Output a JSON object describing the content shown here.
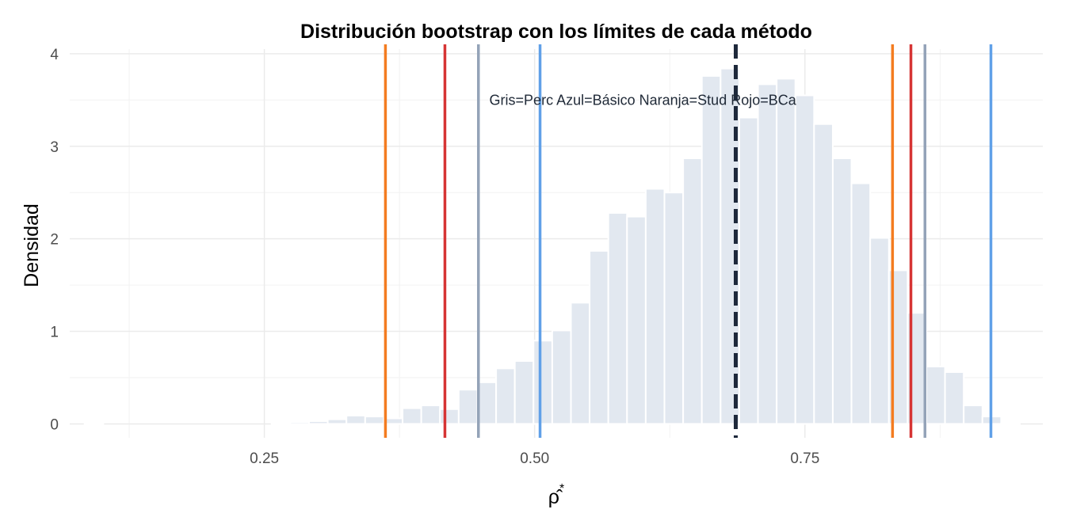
{
  "chart_data": {
    "type": "bar",
    "title": "Distribución bootstrap con los límites de cada método",
    "xlabel": "ρ̂*",
    "ylabel": "Densidad",
    "xlim": [
      0.07,
      0.97
    ],
    "ylim": [
      -0.15,
      4.05
    ],
    "x_ticks": [
      0.25,
      0.5,
      0.75
    ],
    "x_tick_labels": [
      "0.25",
      "0.50",
      "0.75"
    ],
    "y_ticks": [
      0,
      1,
      2,
      3,
      4
    ],
    "y_tick_labels": [
      "0",
      "1",
      "2",
      "3",
      "4"
    ],
    "grid": true,
    "bin_width": 0.0173,
    "bins": {
      "x": [
        0.0924,
        0.2654,
        0.2827,
        0.3,
        0.3173,
        0.3346,
        0.3519,
        0.3692,
        0.3865,
        0.4038,
        0.4211,
        0.4384,
        0.4557,
        0.473,
        0.4903,
        0.5076,
        0.5249,
        0.5422,
        0.5595,
        0.5768,
        0.5941,
        0.6114,
        0.6287,
        0.646,
        0.6633,
        0.6806,
        0.6979,
        0.7152,
        0.7325,
        0.7498,
        0.7671,
        0.7844,
        0.8017,
        0.819,
        0.8363,
        0.8536,
        0.8709,
        0.8882,
        0.9055,
        0.9228,
        0.9401
      ],
      "density": [
        0.01,
        0.01,
        0.02,
        0.03,
        0.05,
        0.09,
        0.08,
        0.06,
        0.17,
        0.2,
        0.16,
        0.37,
        0.45,
        0.6,
        0.68,
        0.9,
        1.01,
        1.31,
        1.87,
        2.28,
        2.24,
        2.54,
        2.5,
        2.87,
        3.76,
        3.84,
        3.31,
        3.67,
        3.73,
        3.55,
        3.24,
        2.87,
        2.6,
        2.01,
        1.66,
        1.2,
        0.62,
        0.56,
        0.2,
        0.08,
        0.01
      ],
      "color": "#e2e8f0"
    },
    "vlines": [
      {
        "x": 0.362,
        "color": "#f47c20",
        "style": "solid"
      },
      {
        "x": 0.417,
        "color": "#d63434",
        "style": "solid"
      },
      {
        "x": 0.448,
        "color": "#94a3b8",
        "style": "solid"
      },
      {
        "x": 0.505,
        "color": "#60a0e8",
        "style": "solid"
      },
      {
        "x": 0.686,
        "color": "#1e293b",
        "style": "dashed"
      },
      {
        "x": 0.831,
        "color": "#f47c20",
        "style": "solid"
      },
      {
        "x": 0.848,
        "color": "#d63434",
        "style": "solid"
      },
      {
        "x": 0.861,
        "color": "#94a3b8",
        "style": "solid"
      },
      {
        "x": 0.922,
        "color": "#60a0e8",
        "style": "solid"
      }
    ],
    "annotation": {
      "text": "Gris=Perc  Azul=Básico  Naranja=Stud  Rojo=BCa",
      "x": 0.6,
      "y": 3.5
    }
  }
}
